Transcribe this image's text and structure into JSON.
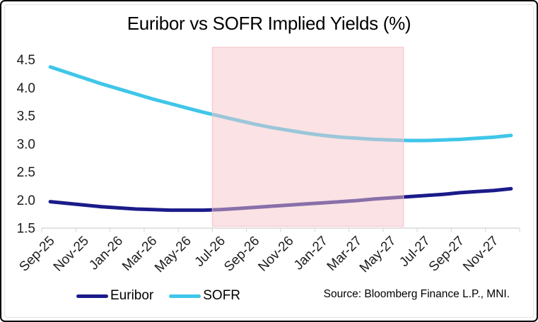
{
  "title": "Euribor vs SOFR Implied Yields (%)",
  "source_note": "Source: Bloomberg Finance L.P., MNI.",
  "colors": {
    "euribor": "#1b1b8a",
    "sofr": "#3fc6e9",
    "highlight_fill": "#f7c5c9",
    "highlight_border": "#f3bfc5",
    "axis": "#d9d9d9",
    "text": "#1c1c1c"
  },
  "legend": [
    {
      "label": "Euribor",
      "color": "#1b1b8a"
    },
    {
      "label": "SOFR",
      "color": "#3fc6e9"
    }
  ],
  "chart_data": {
    "type": "line",
    "title": "Euribor vs SOFR Implied Yields (%)",
    "x": [
      "Sep-25",
      "Oct-25",
      "Nov-25",
      "Dec-25",
      "Jan-26",
      "Feb-26",
      "Mar-26",
      "Apr-26",
      "May-26",
      "Jun-26",
      "Jul-26",
      "Aug-26",
      "Sep-26",
      "Oct-26",
      "Nov-26",
      "Dec-26",
      "Jan-27",
      "Feb-27",
      "Mar-27",
      "Apr-27",
      "May-27",
      "Jun-27",
      "Jul-27",
      "Aug-27",
      "Sep-27",
      "Oct-27",
      "Nov-27",
      "Dec-27"
    ],
    "x_tick_labels": [
      "Sep-25",
      "Nov-25",
      "Jan-26",
      "Mar-26",
      "May-26",
      "Jul-26",
      "Sep-26",
      "Nov-26",
      "Jan-27",
      "Mar-27",
      "May-27",
      "Jul-27",
      "Sep-27",
      "Nov-27"
    ],
    "series": [
      {
        "name": "Euribor",
        "color": "#1b1b8a",
        "values": [
          1.97,
          1.94,
          1.91,
          1.88,
          1.86,
          1.84,
          1.83,
          1.82,
          1.82,
          1.82,
          1.83,
          1.85,
          1.87,
          1.89,
          1.91,
          1.93,
          1.95,
          1.97,
          1.99,
          2.02,
          2.04,
          2.06,
          2.08,
          2.1,
          2.13,
          2.15,
          2.17,
          2.2
        ]
      },
      {
        "name": "SOFR",
        "color": "#3fc6e9",
        "values": [
          4.37,
          4.27,
          4.17,
          4.07,
          3.98,
          3.89,
          3.8,
          3.72,
          3.64,
          3.56,
          3.49,
          3.42,
          3.35,
          3.29,
          3.24,
          3.19,
          3.15,
          3.12,
          3.1,
          3.08,
          3.07,
          3.06,
          3.06,
          3.07,
          3.08,
          3.1,
          3.12,
          3.15
        ]
      }
    ],
    "ylim": [
      1.5,
      4.5
    ],
    "y_tick_labels": [
      "4.5",
      "4.0",
      "3.5",
      "3.0",
      "2.5",
      "2.0",
      "1.5"
    ],
    "grid": false,
    "legend_position": "bottom-left",
    "highlight_region": {
      "from": "Jul-26",
      "to": "May-27",
      "fill": "#f7c5c9",
      "opacity": 0.5
    }
  }
}
